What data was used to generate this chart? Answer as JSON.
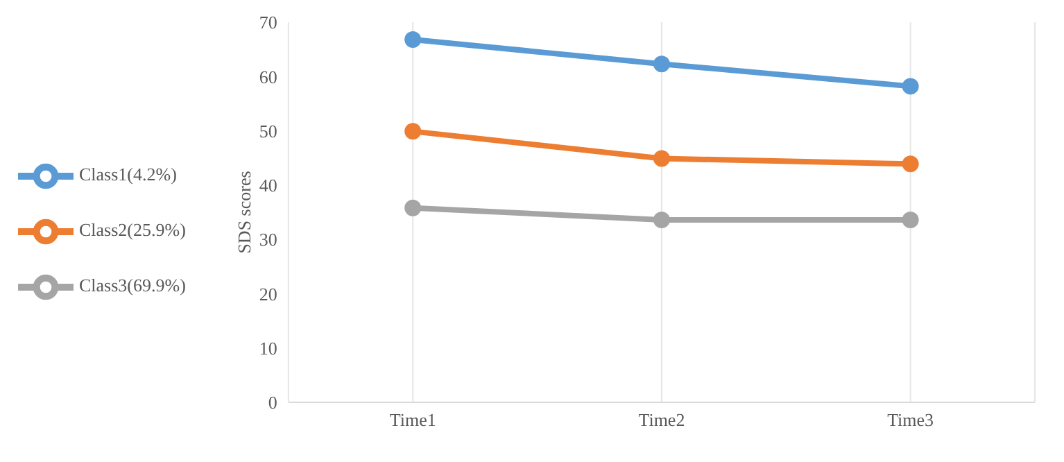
{
  "chart_data": {
    "type": "line",
    "ylabel": "SDS scores",
    "categories": [
      "Time1",
      "Time2",
      "Time3"
    ],
    "series": [
      {
        "name": "Class1(4.2%)",
        "color": "#5b9bd5",
        "values": [
          66.8,
          62.3,
          58.2
        ]
      },
      {
        "name": "Class2(25.9%)",
        "color": "#ed7d31",
        "values": [
          49.9,
          44.9,
          43.9
        ]
      },
      {
        "name": "Class3(69.9%)",
        "color": "#a5a5a5",
        "values": [
          35.8,
          33.6,
          33.6
        ]
      }
    ],
    "ylim": [
      0,
      70
    ],
    "yticks": [
      0,
      10,
      20,
      30,
      40,
      50,
      60,
      70
    ],
    "grid": "x",
    "legend": "left",
    "marker": "circle",
    "line_style": "solid"
  }
}
